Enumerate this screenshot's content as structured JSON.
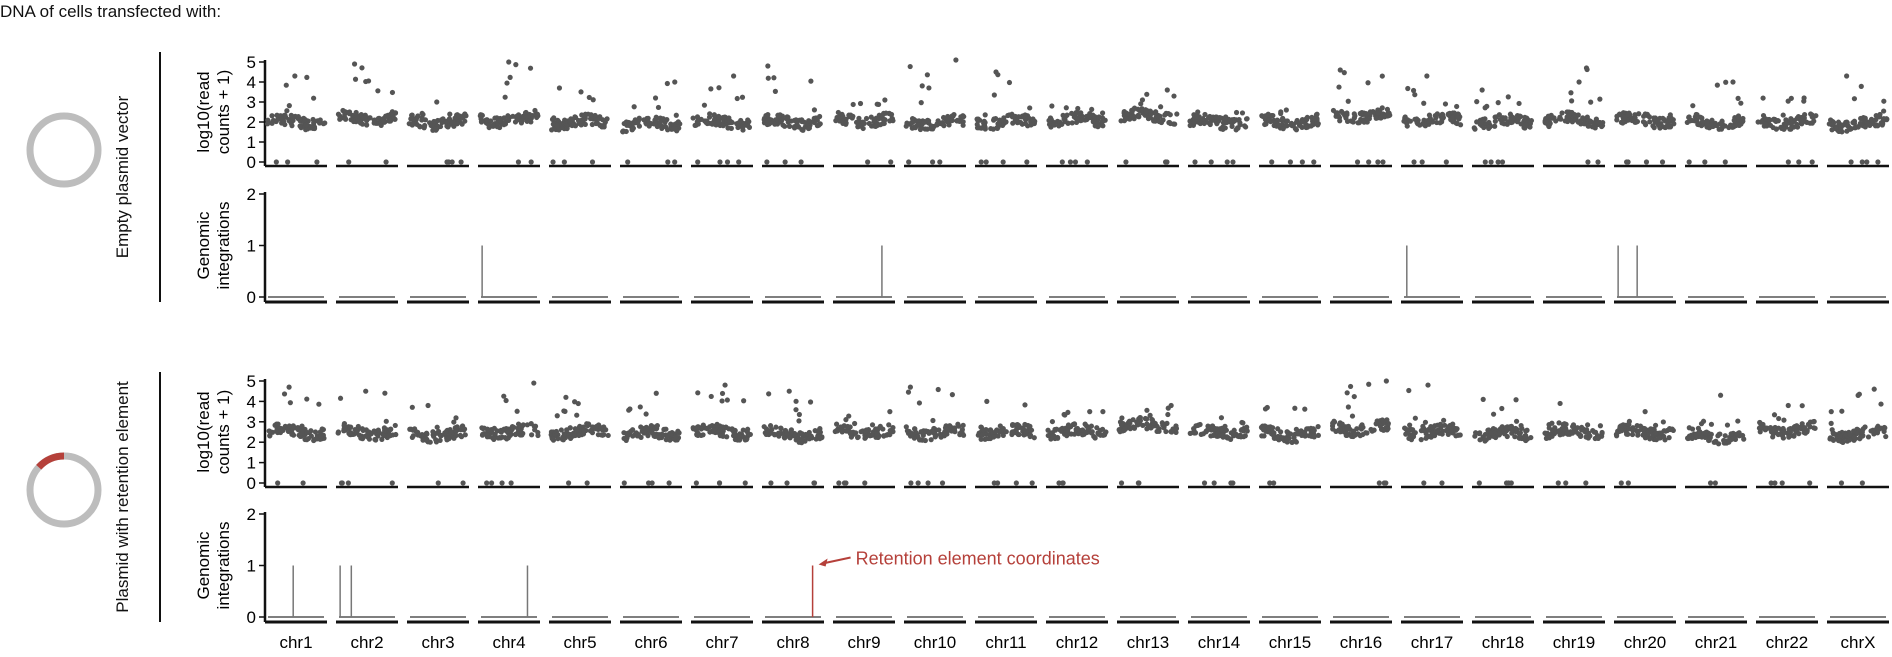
{
  "figure": {
    "title": "DNA of cells transfected with:",
    "colors": {
      "points": "#555555",
      "axis": "#111111",
      "integration_line": "#777777",
      "baseline": "#555555",
      "accent": "#b5403a",
      "plasmid_ring": "#bdbdbd"
    },
    "panels": [
      {
        "condition_label": "Empty plasmid vector",
        "plasmid_icon": "empty-plasmid-icon",
        "has_retention_element": false,
        "read_ylabel_line1": "log10(read",
        "read_ylabel_line2": "counts + 1)",
        "integ_ylabel_line1": "Genomic",
        "integ_ylabel_line2": "integrations"
      },
      {
        "condition_label": "Plasmid with retention element",
        "plasmid_icon": "retention-plasmid-icon",
        "has_retention_element": true,
        "read_ylabel_line1": "log10(read",
        "read_ylabel_line2": "counts + 1)",
        "integ_ylabel_line1": "Genomic",
        "integ_ylabel_line2": "integrations",
        "annotation": "Retention element coordinates"
      }
    ]
  },
  "chart_data": [
    {
      "type": "scatter",
      "title": "Empty plasmid vector — read counts",
      "xlabel": "",
      "ylabel": "log10(read counts + 1)",
      "ylim": [
        0,
        5
      ],
      "yticks": [
        0,
        1,
        2,
        3,
        4,
        5
      ],
      "categories": [
        "chr1",
        "chr2",
        "chr3",
        "chr4",
        "chr5",
        "chr6",
        "chr7",
        "chr8",
        "chr9",
        "chr10",
        "chr11",
        "chr12",
        "chr13",
        "chr14",
        "chr15",
        "chr16",
        "chr17",
        "chr18",
        "chr19",
        "chr20",
        "chr21",
        "chr22",
        "chrX"
      ],
      "typical_level": [
        2.0,
        2.2,
        2.0,
        2.1,
        2.0,
        1.9,
        2.0,
        2.0,
        2.1,
        2.0,
        2.0,
        2.1,
        2.3,
        2.0,
        2.0,
        2.3,
        2.1,
        2.0,
        2.1,
        2.1,
        2.0,
        2.0,
        1.9
      ],
      "max_outlier": [
        4.3,
        4.9,
        3.0,
        5.0,
        3.7,
        4.0,
        4.3,
        4.8,
        3.1,
        5.1,
        4.5,
        2.8,
        3.6,
        2.5,
        2.6,
        4.6,
        4.3,
        3.6,
        4.7,
        2.4,
        4.0,
        3.2,
        4.3
      ],
      "grid": false
    },
    {
      "type": "bar",
      "title": "Empty plasmid vector — genomic integrations",
      "ylabel": "Genomic integrations",
      "ylim": [
        0,
        2
      ],
      "yticks": [
        0,
        1,
        2
      ],
      "categories": [
        "chr1",
        "chr2",
        "chr3",
        "chr4",
        "chr5",
        "chr6",
        "chr7",
        "chr8",
        "chr9",
        "chr10",
        "chr11",
        "chr12",
        "chr13",
        "chr14",
        "chr15",
        "chr16",
        "chr17",
        "chr18",
        "chr19",
        "chr20",
        "chr21",
        "chr22",
        "chrX"
      ],
      "integrations": [
        {
          "chrom": "chr4",
          "pos_frac": 0.02,
          "count": 1
        },
        {
          "chrom": "chr9",
          "pos_frac": 0.82,
          "count": 1
        },
        {
          "chrom": "chr17",
          "pos_frac": 0.05,
          "count": 1
        },
        {
          "chrom": "chr20",
          "pos_frac": 0.02,
          "count": 1
        },
        {
          "chrom": "chr20",
          "pos_frac": 0.36,
          "count": 1
        }
      ],
      "values": [
        0,
        0,
        0,
        1,
        0,
        0,
        0,
        0,
        1,
        0,
        0,
        0,
        0,
        0,
        0,
        0,
        1,
        0,
        0,
        2,
        0,
        0,
        0
      ]
    },
    {
      "type": "scatter",
      "title": "Plasmid with retention element — read counts",
      "ylabel": "log10(read counts + 1)",
      "ylim": [
        0,
        5
      ],
      "yticks": [
        0,
        1,
        2,
        3,
        4,
        5
      ],
      "categories": [
        "chr1",
        "chr2",
        "chr3",
        "chr4",
        "chr5",
        "chr6",
        "chr7",
        "chr8",
        "chr9",
        "chr10",
        "chr11",
        "chr12",
        "chr13",
        "chr14",
        "chr15",
        "chr16",
        "chr17",
        "chr18",
        "chr19",
        "chr20",
        "chr21",
        "chr22",
        "chrX"
      ],
      "typical_level": [
        2.5,
        2.5,
        2.4,
        2.5,
        2.5,
        2.4,
        2.5,
        2.4,
        2.5,
        2.5,
        2.5,
        2.5,
        2.8,
        2.5,
        2.4,
        2.7,
        2.5,
        2.4,
        2.5,
        2.5,
        2.3,
        2.6,
        2.4
      ],
      "max_outlier": [
        4.7,
        4.5,
        3.8,
        4.9,
        4.2,
        4.4,
        4.8,
        4.5,
        3.5,
        4.7,
        4.0,
        3.5,
        3.8,
        3.2,
        3.7,
        5.0,
        4.8,
        4.1,
        3.9,
        3.5,
        4.3,
        3.8,
        4.6
      ],
      "grid": false
    },
    {
      "type": "bar",
      "title": "Plasmid with retention element — genomic integrations",
      "ylabel": "Genomic integrations",
      "ylim": [
        0,
        2
      ],
      "yticks": [
        0,
        1,
        2
      ],
      "categories": [
        "chr1",
        "chr2",
        "chr3",
        "chr4",
        "chr5",
        "chr6",
        "chr7",
        "chr8",
        "chr9",
        "chr10",
        "chr11",
        "chr12",
        "chr13",
        "chr14",
        "chr15",
        "chr16",
        "chr17",
        "chr18",
        "chr19",
        "chr20",
        "chr21",
        "chr22",
        "chrX"
      ],
      "integrations": [
        {
          "chrom": "chr1",
          "pos_frac": 0.45,
          "count": 1
        },
        {
          "chrom": "chr2",
          "pos_frac": 0.02,
          "count": 1
        },
        {
          "chrom": "chr2",
          "pos_frac": 0.22,
          "count": 1
        },
        {
          "chrom": "chr4",
          "pos_frac": 0.83,
          "count": 1
        },
        {
          "chrom": "chr8",
          "pos_frac": 0.85,
          "count": 1,
          "highlight": true,
          "annotation": "Retention element coordinates"
        }
      ],
      "values": [
        1,
        2,
        0,
        1,
        0,
        0,
        0,
        1,
        0,
        0,
        0,
        0,
        0,
        0,
        0,
        0,
        0,
        0,
        0,
        0,
        0,
        0,
        0
      ]
    }
  ]
}
